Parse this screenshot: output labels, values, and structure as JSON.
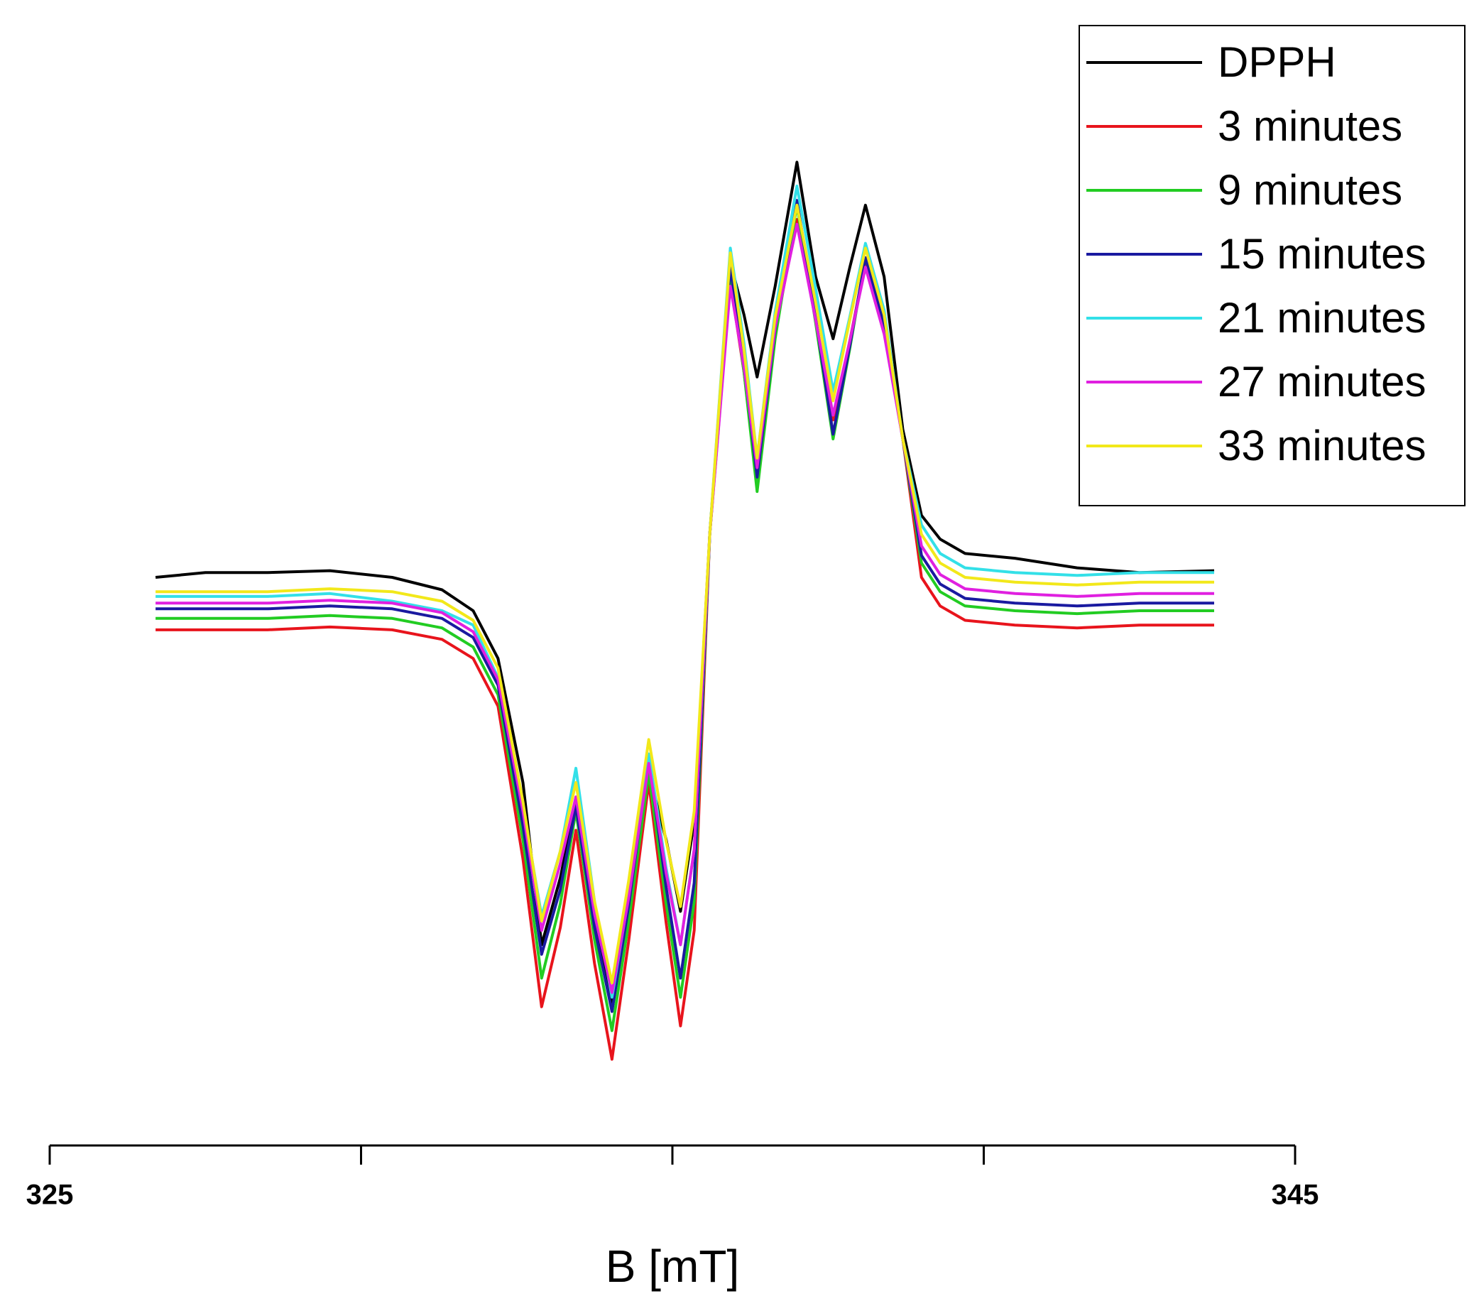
{
  "chart_data": {
    "type": "line",
    "xlabel": "B [mT]",
    "xlim": [
      325,
      345
    ],
    "xticks": [
      325,
      {
        "value": 330,
        "label": null
      },
      {
        "value": 335,
        "label": null
      },
      {
        "value": 340,
        "label": null
      },
      345
    ],
    "ylim": [
      -560,
      650
    ],
    "legend": "upper right",
    "x": [
      326.7,
      327.5,
      328.5,
      329.5,
      330.5,
      331.3,
      331.8,
      332.2,
      332.6,
      332.9,
      333.2,
      333.45,
      333.75,
      334.03,
      334.3,
      334.62,
      334.9,
      335.13,
      335.35,
      335.6,
      335.93,
      336.15,
      336.36,
      336.65,
      337.0,
      337.3,
      337.58,
      337.85,
      338.1,
      338.4,
      338.7,
      339.0,
      339.3,
      339.7,
      340.5,
      341.5,
      342.5,
      343.7
    ],
    "series": [
      {
        "name": "DPPH",
        "color": "#000000",
        "values": [
          45,
          50,
          50,
          52,
          45,
          32,
          10,
          -40,
          -170,
          -340,
          -270,
          -190,
          -310,
          -400,
          -280,
          -160,
          -230,
          -305,
          -210,
          90,
          375,
          320,
          255,
          350,
          480,
          360,
          295,
          370,
          435,
          360,
          200,
          110,
          85,
          70,
          65,
          55,
          50,
          52
        ]
      },
      {
        "name": "3 minutes",
        "color": "#e8141c",
        "values": [
          -10,
          -10,
          -10,
          -7,
          -10,
          -20,
          -40,
          -90,
          -250,
          -405,
          -322,
          -220,
          -360,
          -460,
          -335,
          -170,
          -317,
          -425,
          -325,
          90,
          355,
          260,
          145,
          303,
          420,
          315,
          210,
          293,
          375,
          305,
          190,
          45,
          15,
          0,
          -5,
          -8,
          -5,
          -5
        ]
      },
      {
        "name": "9 minutes",
        "color": "#22cc22",
        "values": [
          2,
          2,
          2,
          5,
          2,
          -8,
          -28,
          -78,
          -230,
          -375,
          -297,
          -200,
          -335,
          -430,
          -315,
          -160,
          -297,
          -395,
          -295,
          90,
          365,
          260,
          135,
          295,
          435,
          312,
          190,
          285,
          380,
          310,
          190,
          60,
          30,
          15,
          10,
          7,
          10,
          10
        ]
      },
      {
        "name": "15 minutes",
        "color": "#1a1aa0",
        "values": [
          12,
          12,
          12,
          15,
          12,
          2,
          -18,
          -68,
          -215,
          -350,
          -282,
          -195,
          -322,
          -410,
          -298,
          -145,
          -280,
          -375,
          -275,
          90,
          370,
          270,
          150,
          305,
          440,
          318,
          195,
          288,
          380,
          310,
          190,
          68,
          38,
          23,
          18,
          15,
          18,
          18
        ]
      },
      {
        "name": "21 minutes",
        "color": "#33e0e8",
        "values": [
          25,
          25,
          25,
          28,
          20,
          10,
          -5,
          -60,
          -195,
          -310,
          -242,
          -155,
          -295,
          -395,
          -288,
          -140,
          -260,
          -340,
          -240,
          90,
          390,
          290,
          170,
          323,
          455,
          348,
          240,
          318,
          395,
          325,
          190,
          100,
          70,
          55,
          50,
          47,
          50,
          50
        ]
      },
      {
        "name": "27 minutes",
        "color": "#e020e0",
        "values": [
          18,
          18,
          18,
          21,
          18,
          8,
          -12,
          -62,
          -200,
          -325,
          -255,
          -185,
          -308,
          -390,
          -290,
          -150,
          -265,
          -340,
          -240,
          90,
          350,
          265,
          160,
          307,
          415,
          315,
          215,
          293,
          370,
          300,
          190,
          78,
          48,
          33,
          28,
          25,
          28,
          28
        ]
      },
      {
        "name": "33 minutes",
        "color": "#f2e81a",
        "values": [
          30,
          30,
          30,
          33,
          30,
          20,
          0,
          -50,
          -190,
          -315,
          -242,
          -170,
          -295,
          -380,
          -272,
          -125,
          -232,
          -300,
          -200,
          90,
          385,
          283,
          170,
          318,
          435,
          333,
          230,
          315,
          390,
          320,
          190,
          90,
          60,
          45,
          40,
          37,
          40,
          40
        ]
      }
    ]
  }
}
